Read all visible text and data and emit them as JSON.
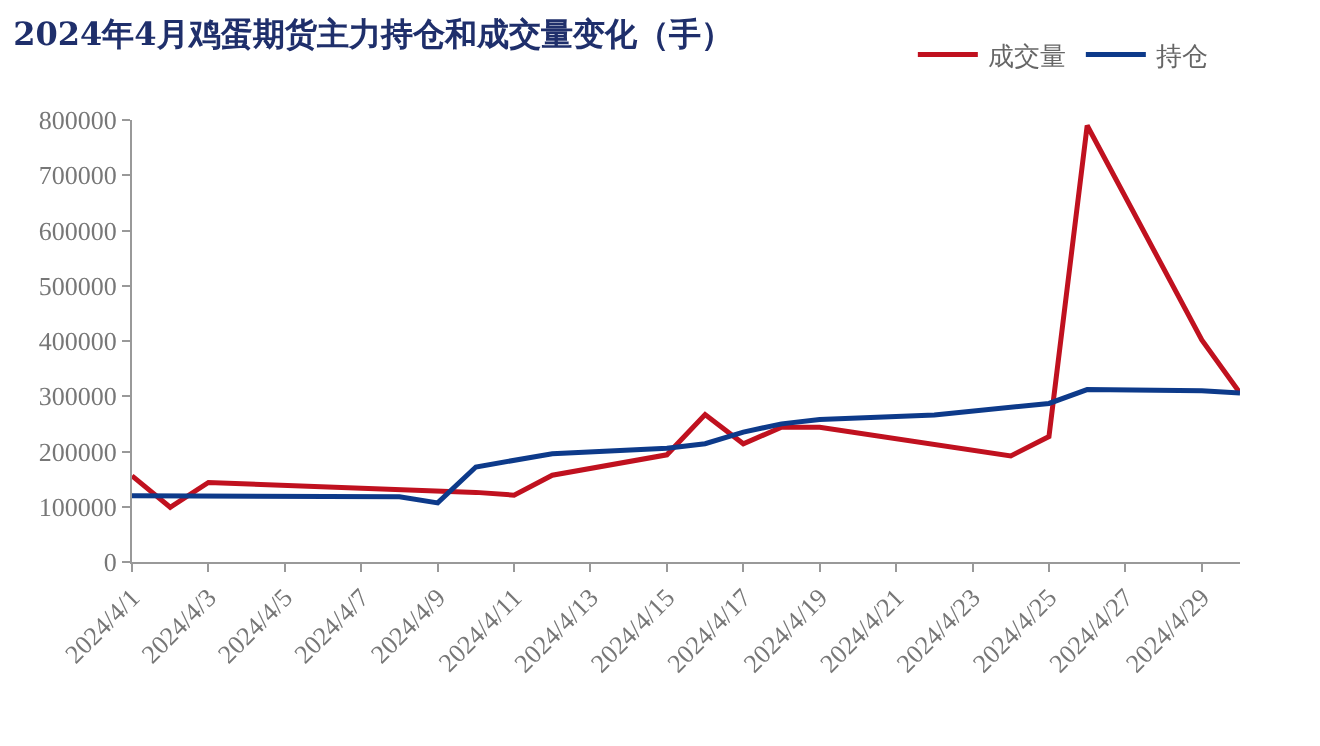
{
  "chart_data": {
    "type": "line",
    "title": "2024年4月鸡蛋期货主力持仓和成交量变化（手）",
    "x": [
      "2024-04-01",
      "2024-04-02",
      "2024-04-03",
      "2024-04-10",
      "2024-04-11",
      "2024-04-12",
      "2024-04-15",
      "2024-04-16",
      "2024-04-17",
      "2024-04-18",
      "2024-04-19",
      "2024-04-24",
      "2024-04-25",
      "2024-04-26",
      "2024-04-29",
      "2024-04-30"
    ],
    "series": [
      {
        "name": "成交量",
        "color": "#c0111f",
        "values": [
          156000,
          99000,
          144000,
          126000,
          121000,
          157000,
          194000,
          267000,
          214000,
          244000,
          244000,
          192000,
          227000,
          790000,
          402000,
          306000
        ]
      },
      {
        "name": "持仓",
        "color": "#0d3a8a",
        "x": [
          "2024-04-01",
          "2024-04-08",
          "2024-04-09",
          "2024-04-10",
          "2024-04-12",
          "2024-04-15",
          "2024-04-16",
          "2024-04-17",
          "2024-04-18",
          "2024-04-19",
          "2024-04-22",
          "2024-04-25",
          "2024-04-26",
          "2024-04-29",
          "2024-04-30"
        ],
        "values": [
          120000,
          118000,
          107000,
          172000,
          196000,
          206000,
          214000,
          235000,
          250000,
          258000,
          266000,
          287000,
          312000,
          310000,
          306000
        ]
      }
    ],
    "xlim": [
      "2024-04-01",
      "2024-04-30"
    ],
    "xticks": [
      {
        "value": "2024-04-01",
        "label": "2024/4/1"
      },
      {
        "value": "2024-04-03",
        "label": "2024/4/3"
      },
      {
        "value": "2024-04-05",
        "label": "2024/4/5"
      },
      {
        "value": "2024-04-07",
        "label": "2024/4/7"
      },
      {
        "value": "2024-04-09",
        "label": "2024/4/9"
      },
      {
        "value": "2024-04-11",
        "label": "2024/4/11"
      },
      {
        "value": "2024-04-13",
        "label": "2024/4/13"
      },
      {
        "value": "2024-04-15",
        "label": "2024/4/15"
      },
      {
        "value": "2024-04-17",
        "label": "2024/4/17"
      },
      {
        "value": "2024-04-19",
        "label": "2024/4/19"
      },
      {
        "value": "2024-04-21",
        "label": "2024/4/21"
      },
      {
        "value": "2024-04-23",
        "label": "2024/4/23"
      },
      {
        "value": "2024-04-25",
        "label": "2024/4/25"
      },
      {
        "value": "2024-04-27",
        "label": "2024/4/27"
      },
      {
        "value": "2024-04-29",
        "label": "2024/4/29"
      }
    ],
    "ylim": [
      0,
      800000
    ],
    "yticks": [
      0,
      100000,
      200000,
      300000,
      400000,
      500000,
      600000,
      700000,
      800000
    ],
    "grid": false,
    "legend": "top right",
    "marker": "none",
    "line_style": "solid"
  }
}
